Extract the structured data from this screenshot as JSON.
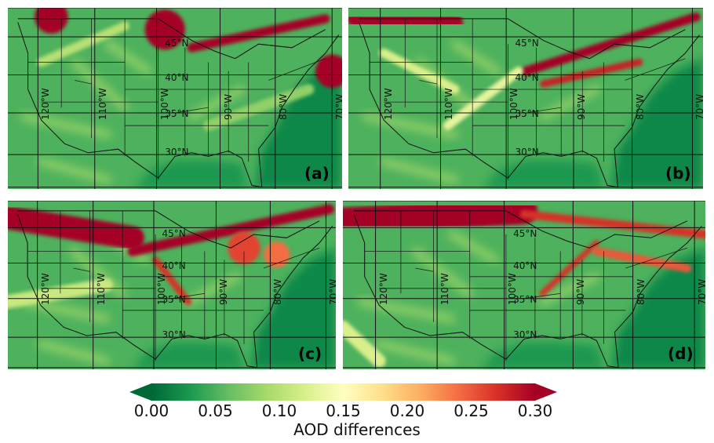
{
  "panels": [
    {
      "label": "(a)",
      "plumes": [
        {
          "shape": "blob",
          "at": [
            0.13,
            0.05
          ],
          "r": 0.05,
          "level": 0.3
        },
        {
          "shape": "blob",
          "at": [
            0.47,
            0.12
          ],
          "r": 0.06,
          "level": 0.3
        },
        {
          "shape": "band",
          "from": [
            0.55,
            0.22
          ],
          "to": [
            0.95,
            0.06
          ],
          "w": 0.05,
          "level": 0.3
        },
        {
          "shape": "blob",
          "at": [
            0.97,
            0.35
          ],
          "r": 0.05,
          "level": 0.3
        },
        {
          "shape": "band",
          "from": [
            0.1,
            0.3
          ],
          "to": [
            0.35,
            0.1
          ],
          "w": 0.05,
          "level": 0.1
        },
        {
          "shape": "band",
          "from": [
            0.6,
            0.65
          ],
          "to": [
            0.9,
            0.45
          ],
          "w": 0.06,
          "level": 0.08
        }
      ]
    },
    {
      "label": "(b)",
      "plumes": [
        {
          "shape": "band",
          "from": [
            0.02,
            0.06
          ],
          "to": [
            0.3,
            0.08
          ],
          "w": 0.09,
          "level": 0.3
        },
        {
          "shape": "band",
          "from": [
            0.5,
            0.35
          ],
          "to": [
            0.98,
            0.05
          ],
          "w": 0.05,
          "level": 0.3
        },
        {
          "shape": "band",
          "from": [
            0.55,
            0.42
          ],
          "to": [
            0.82,
            0.3
          ],
          "w": 0.04,
          "level": 0.28
        },
        {
          "shape": "band",
          "from": [
            0.28,
            0.65
          ],
          "to": [
            0.48,
            0.35
          ],
          "w": 0.05,
          "level": 0.13
        },
        {
          "shape": "band",
          "from": [
            0.1,
            0.25
          ],
          "to": [
            0.3,
            0.45
          ],
          "w": 0.05,
          "level": 0.12
        }
      ]
    },
    {
      "label": "(c)",
      "plumes": [
        {
          "shape": "band",
          "from": [
            0.0,
            0.1
          ],
          "to": [
            0.38,
            0.22
          ],
          "w": 0.14,
          "level": 0.3
        },
        {
          "shape": "band",
          "from": [
            0.38,
            0.3
          ],
          "to": [
            0.98,
            0.05
          ],
          "w": 0.06,
          "level": 0.3
        },
        {
          "shape": "band",
          "from": [
            0.45,
            0.35
          ],
          "to": [
            0.55,
            0.6
          ],
          "w": 0.04,
          "level": 0.27
        },
        {
          "shape": "blob",
          "at": [
            0.72,
            0.28
          ],
          "r": 0.05,
          "level": 0.26
        },
        {
          "shape": "blob",
          "at": [
            0.82,
            0.32
          ],
          "r": 0.04,
          "level": 0.24
        },
        {
          "shape": "band",
          "from": [
            0.0,
            0.6
          ],
          "to": [
            0.3,
            0.5
          ],
          "w": 0.08,
          "level": 0.11
        }
      ]
    },
    {
      "label": "(d)",
      "plumes": [
        {
          "shape": "band",
          "from": [
            0.0,
            0.12
          ],
          "to": [
            0.5,
            0.06
          ],
          "w": 0.16,
          "level": 0.3
        },
        {
          "shape": "band",
          "from": [
            0.5,
            0.08
          ],
          "to": [
            1.0,
            0.2
          ],
          "w": 0.05,
          "level": 0.27
        },
        {
          "shape": "band",
          "from": [
            0.55,
            0.55
          ],
          "to": [
            0.7,
            0.25
          ],
          "w": 0.035,
          "level": 0.27
        },
        {
          "shape": "band",
          "from": [
            0.7,
            0.3
          ],
          "to": [
            0.95,
            0.4
          ],
          "w": 0.05,
          "level": 0.25
        },
        {
          "shape": "band",
          "from": [
            0.0,
            0.75
          ],
          "to": [
            0.1,
            0.95
          ],
          "w": 0.08,
          "level": 0.12
        }
      ]
    }
  ],
  "lat_labels": [
    "45°N",
    "40°N",
    "35°N",
    "30°N"
  ],
  "lon_labels": [
    "120°W",
    "110°W",
    "100°W",
    "90°W",
    "80°W",
    "70°W"
  ],
  "colorbar": {
    "ticks": [
      "0.00",
      "0.05",
      "0.10",
      "0.15",
      "0.20",
      "0.25",
      "0.30"
    ],
    "title": "AOD differences",
    "range": [
      0.0,
      0.3
    ],
    "colormap": "RdYlGn_r",
    "extend": "both"
  },
  "colors": {
    "low": "#006837",
    "mid": "#ffffbf",
    "high": "#a50026",
    "ocean": "#1f8a46",
    "border": "#111111"
  }
}
